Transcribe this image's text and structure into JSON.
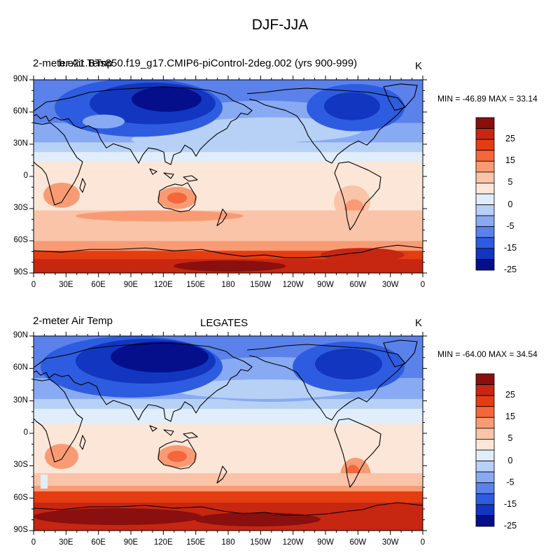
{
  "figure": {
    "title": "DJF-JJA"
  },
  "panels": [
    {
      "left_title": "2-meter Air Temp",
      "center_title": "b.e21.BTs850.f19_g17.CMIP6-piControl-2deg.002 (yrs 900-999)",
      "units": "K",
      "stats": "MIN = -46.89 MAX =  33.14"
    },
    {
      "left_title": "2-meter Air Temp",
      "center_title": "LEGATES",
      "units": "K",
      "stats": "MIN = -64.00 MAX =  34.54"
    }
  ],
  "axes": {
    "lat_ticks": [
      "90N",
      "60N",
      "30N",
      "0",
      "30S",
      "60S",
      "90S"
    ],
    "lon_ticks": [
      "0",
      "30E",
      "60E",
      "90E",
      "120E",
      "150E",
      "180",
      "150W",
      "120W",
      "90W",
      "60W",
      "30W",
      "0"
    ]
  },
  "colorbar": {
    "labels": [
      "25",
      "15",
      "5",
      "0",
      "-5",
      "-15",
      "-25"
    ],
    "colors": [
      "#8a0f0f",
      "#c72611",
      "#e53d12",
      "#f5663a",
      "#f89b74",
      "#fac4a8",
      "#fce6d8",
      "#dfeefa",
      "#b7d0f5",
      "#87aaf2",
      "#5b82ea",
      "#2e5ce0",
      "#1236c0",
      "#050f8c"
    ]
  },
  "chart_data": {
    "type": "heatmap",
    "title": "DJF-JJA",
    "units": "K",
    "projection": "cylindrical equidistant",
    "lon_range": [
      0,
      360
    ],
    "lat_range": [
      -90,
      90
    ],
    "contour_levels": [
      -30,
      -25,
      -20,
      -15,
      -10,
      -5,
      -2,
      0,
      2,
      5,
      10,
      15,
      20,
      25,
      30
    ],
    "series": [
      {
        "name": "b.e21.BTs850.f19_g17.CMIP6-piControl-2deg.002 (yrs 900-999)",
        "min": -46.89,
        "max": 33.14
      },
      {
        "name": "LEGATES",
        "min": -64.0,
        "max": 34.54
      }
    ]
  }
}
